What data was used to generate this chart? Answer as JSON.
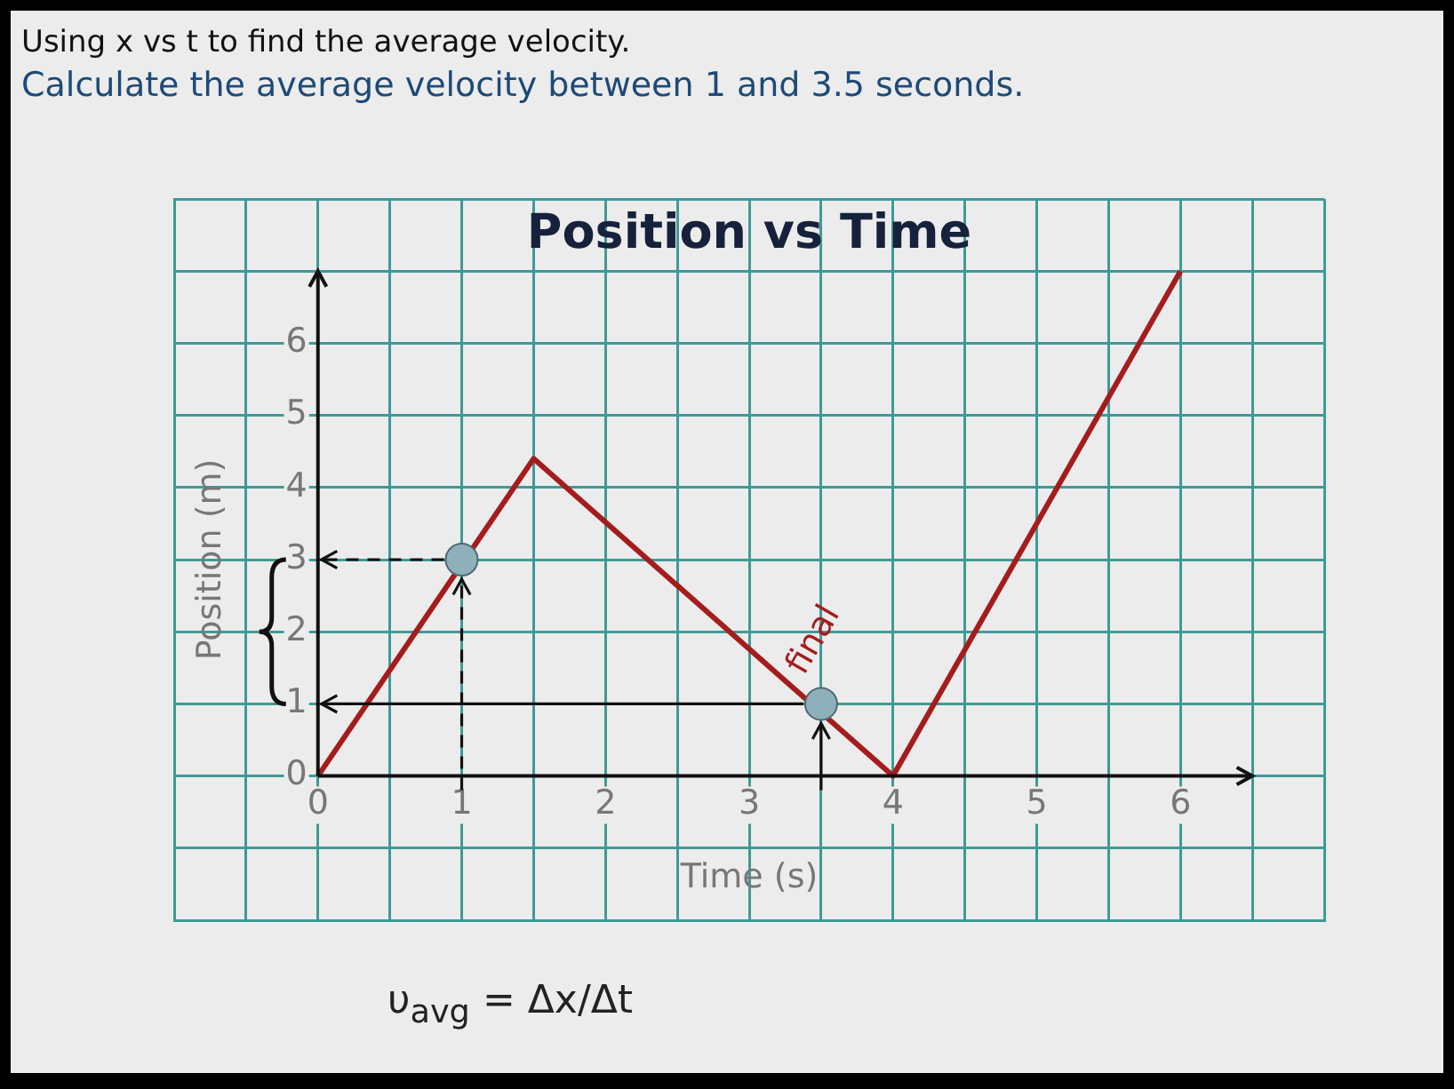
{
  "chart_data": {
    "type": "line",
    "title": "Position vs Time",
    "xlabel": "Time (s)",
    "ylabel": "Position (m)",
    "x": [
      0,
      1.5,
      4,
      6
    ],
    "series": [
      {
        "color": "#a51c1c",
        "values": [
          0,
          4.4,
          0,
          7
        ],
        "marker": "none",
        "line_style": "solid"
      },
      {
        "type": "scatter",
        "x": [
          1
        ],
        "values": [
          3
        ],
        "color": "#8fb0bb",
        "marker": "circle",
        "line_style": "dashed"
      },
      {
        "type": "scatter",
        "x": [
          3.5
        ],
        "values": [
          1
        ],
        "color": "#8fb0bb",
        "marker": "circle",
        "line_style": "solid"
      }
    ],
    "xlim": [
      -1,
      7
    ],
    "ylim": [
      -2,
      8
    ],
    "xticks": [
      {
        "value": -1,
        "label": null
      },
      {
        "value": -0.5,
        "label": null
      },
      0,
      {
        "value": 0.5,
        "label": null
      },
      1,
      {
        "value": 1.5,
        "label": null
      },
      2,
      {
        "value": 2.5,
        "label": null
      },
      3,
      {
        "value": 3.5,
        "label": null
      },
      4,
      {
        "value": 4.5,
        "label": null
      },
      5,
      {
        "value": 5.5,
        "label": null
      },
      6,
      {
        "value": 6.5,
        "label": null
      },
      {
        "value": 7,
        "label": null
      }
    ],
    "yticks": [
      {
        "value": -2,
        "label": null
      },
      {
        "value": -1,
        "label": null
      },
      0,
      1,
      2,
      3,
      4,
      5,
      6,
      {
        "value": 7,
        "label": null
      },
      {
        "value": 8,
        "label": null
      }
    ],
    "grid": true,
    "annotations": [
      "Using x vs t to find the average velocity.",
      "Calculate the average velocity between 1 and 3.5 seconds.",
      {
        "text": "final",
        "x": 3.5,
        "y": 1
      },
      "υ$_{avg}$ = Δx/Δt"
    ]
  }
}
